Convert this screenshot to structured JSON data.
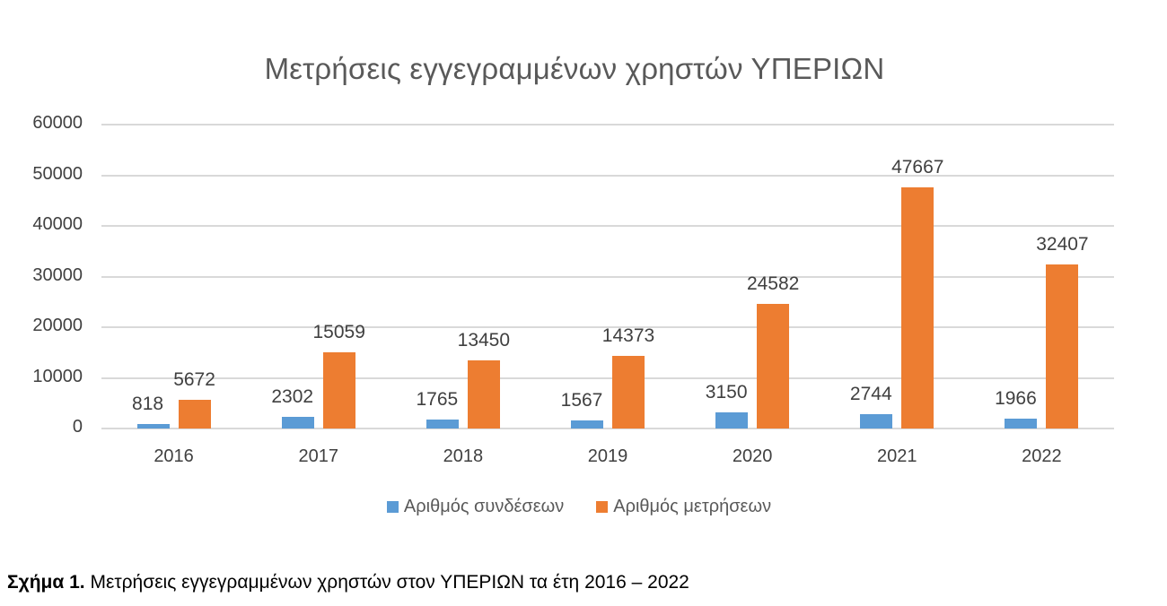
{
  "chart_data": {
    "type": "bar",
    "title": "Μετρήσεις εγγεγραμμένων χρηστών ΥΠΕΡΙΩΝ",
    "xlabel": "",
    "ylabel": "",
    "categories": [
      "2016",
      "2017",
      "2018",
      "2019",
      "2020",
      "2021",
      "2022"
    ],
    "series": [
      {
        "name": "Αριθμός συνδέσεων",
        "color": "#5b9bd5",
        "values": [
          818,
          2302,
          1765,
          1567,
          3150,
          2744,
          1966
        ]
      },
      {
        "name": "Αριθμός μετρήσεων",
        "color": "#ed7d31",
        "values": [
          5672,
          15059,
          13450,
          14373,
          24582,
          47667,
          32407
        ]
      }
    ],
    "ylim": [
      0,
      60000
    ],
    "yticks": [
      "0",
      "10000",
      "20000",
      "30000",
      "40000",
      "50000",
      "60000"
    ],
    "grid": true,
    "legend_position": "bottom",
    "data_labels": true
  },
  "caption": {
    "label": "Σχήμα 1.",
    "text": " Μετρήσεις εγγεγραμμένων χρηστών στον ΥΠΕΡΙΩΝ τα έτη 2016 – 2022"
  }
}
